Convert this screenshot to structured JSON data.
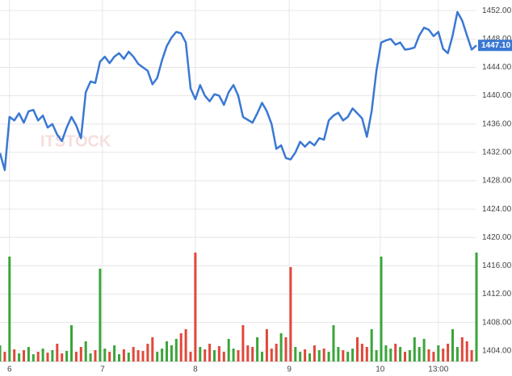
{
  "chart_data": {
    "type": "line",
    "watermark": "ITSTOCK",
    "x": [
      0,
      1,
      2,
      3,
      4,
      5,
      6,
      7,
      8,
      9,
      10,
      11,
      12,
      13,
      14,
      15,
      16,
      17,
      18,
      19,
      20,
      21,
      22,
      23,
      24,
      25,
      26,
      27,
      28,
      29,
      30,
      31,
      32,
      33,
      34,
      35,
      36,
      37,
      38,
      39,
      40,
      41,
      42,
      43,
      44,
      45,
      46,
      47,
      48,
      49,
      50,
      51,
      52,
      53,
      54,
      55,
      56,
      57,
      58,
      59,
      60,
      61,
      62,
      63,
      64,
      65,
      66,
      67,
      68,
      69,
      70,
      71,
      72,
      73,
      74,
      75,
      76,
      77,
      78,
      79,
      80,
      81,
      82,
      83,
      84,
      85,
      86,
      87,
      88,
      89,
      90,
      91,
      92,
      93,
      94,
      95,
      96,
      97,
      98,
      99,
      100
    ],
    "series": [
      {
        "color": "#3a78d4",
        "values": [
          1431.9,
          1429.5,
          1437,
          1436.5,
          1437.5,
          1436.2,
          1437.8,
          1438,
          1436.5,
          1437.2,
          1435.5,
          1436,
          1434.5,
          1433.6,
          1435.5,
          1437,
          1435.8,
          1434,
          1440.5,
          1442,
          1441.8,
          1444.8,
          1445.5,
          1444.6,
          1445.5,
          1446,
          1445.2,
          1446.2,
          1445.5,
          1444.5,
          1444,
          1443.5,
          1441.6,
          1442.5,
          1445,
          1447,
          1448.2,
          1449,
          1448.8,
          1447.5,
          1441,
          1439.5,
          1441.5,
          1440,
          1439.2,
          1440.2,
          1440,
          1438.7,
          1440.5,
          1441.5,
          1440,
          1437,
          1436.6,
          1436.2,
          1437.5,
          1439,
          1437.8,
          1436,
          1432.5,
          1433,
          1431.2,
          1431,
          1432,
          1433.5,
          1432.8,
          1433.5,
          1433,
          1434,
          1433.8,
          1436.5,
          1437.2,
          1437.6,
          1436.5,
          1437,
          1438.2,
          1437.5,
          1436.8,
          1434.2,
          1437.8,
          1443.5,
          1447.5,
          1447.8,
          1448,
          1447.2,
          1447.5,
          1446.5,
          1446.6,
          1446.8,
          1448.5,
          1449.6,
          1449.3,
          1448.4,
          1449,
          1446.6,
          1446,
          1448.5,
          1451.8,
          1450.6,
          1448.5,
          1446.5,
          1447.1
        ]
      }
    ],
    "volume": {
      "up_color": "#3aa53a",
      "down_color": "#e0483a",
      "vlim": [
        0,
        140
      ],
      "values": [
        20,
        12,
        130,
        15,
        10,
        14,
        18,
        9,
        12,
        16,
        11,
        14,
        22,
        10,
        13,
        45,
        12,
        18,
        25,
        10,
        14,
        115,
        16,
        12,
        20,
        9,
        15,
        11,
        18,
        14,
        13,
        22,
        30,
        12,
        16,
        25,
        20,
        28,
        35,
        40,
        12,
        135,
        18,
        15,
        22,
        14,
        19,
        12,
        28,
        16,
        14,
        45,
        20,
        18,
        30,
        12,
        40,
        16,
        22,
        35,
        30,
        117,
        18,
        12,
        15,
        10,
        20,
        14,
        16,
        12,
        45,
        18,
        14,
        12,
        16,
        30,
        22,
        18,
        40,
        14,
        130,
        20,
        16,
        22,
        18,
        12,
        14,
        30,
        18,
        28,
        15,
        12,
        20,
        16,
        22,
        40,
        18,
        30,
        25,
        14,
        135
      ]
    },
    "last_price": {
      "value": 1447.1,
      "label": "1447.10"
    },
    "xlim": [
      0,
      100
    ],
    "xticks": [
      {
        "value": 2,
        "label": "6"
      },
      {
        "value": 21.5,
        "label": "7"
      },
      {
        "value": 41,
        "label": "8"
      },
      {
        "value": 60.7,
        "label": "9"
      },
      {
        "value": 79.8,
        "label": "10"
      },
      {
        "value": 92,
        "label": "13:00"
      }
    ],
    "ylim": [
      1402.5,
      1453.5
    ],
    "yticks": [
      {
        "value": 1404,
        "label": "1404.00"
      },
      {
        "value": 1408,
        "label": "1408.00"
      },
      {
        "value": 1412,
        "label": "1412.00"
      },
      {
        "value": 1416,
        "label": "1416.00"
      },
      {
        "value": 1420,
        "label": "1420.00"
      },
      {
        "value": 1424,
        "label": "1424.00"
      },
      {
        "value": 1428,
        "label": "1428.00"
      },
      {
        "value": 1432,
        "label": "1432.00"
      },
      {
        "value": 1436,
        "label": "1436.00"
      },
      {
        "value": 1440,
        "label": "1440.00"
      },
      {
        "value": 1444,
        "label": "1444.00"
      },
      {
        "value": 1448,
        "label": "1448.00"
      },
      {
        "value": 1452,
        "label": "1452.00"
      }
    ],
    "grid": true
  }
}
